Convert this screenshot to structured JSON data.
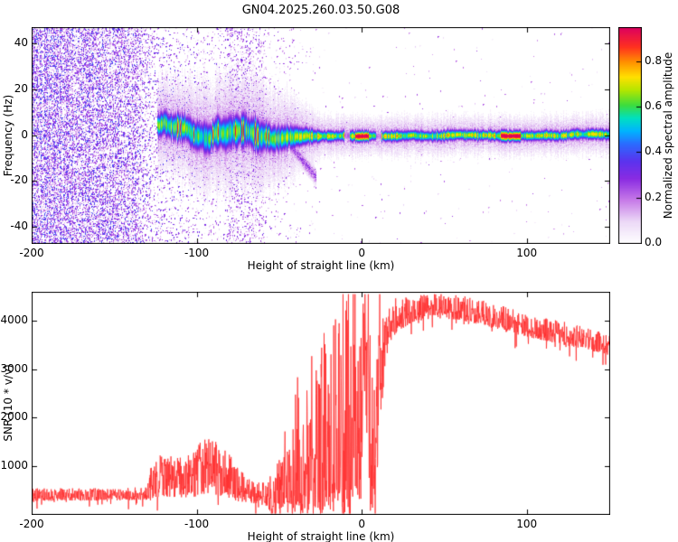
{
  "title": "GN04.2025.260.03.50.G08",
  "chart_data": [
    {
      "type": "heatmap",
      "panel": "doppler-spectrogram",
      "title": "GN04.2025.260.03.50.G08",
      "xlabel": "Height of straight line (km)",
      "ylabel": "Frequency (Hz)",
      "xlim": [
        -200,
        150
      ],
      "ylim": [
        -47,
        47
      ],
      "grid": false,
      "xticks": {
        "values": [
          -200,
          -100,
          0,
          100
        ],
        "labels": [
          "-200",
          "-100",
          "0",
          "100"
        ]
      },
      "yticks": {
        "values": [
          -40,
          -20,
          0,
          20,
          40
        ],
        "labels": [
          "-40",
          "-20",
          "0",
          "20",
          "40"
        ]
      },
      "colorbar": {
        "label": "Normalized spectral amplitude",
        "vmax": 0.95,
        "ticks": {
          "values": [
            0,
            0.2,
            0.4,
            0.6,
            0.8
          ],
          "labels": [
            "0.0",
            "0.2",
            "0.4",
            "0.6",
            "0.8"
          ]
        },
        "stops": [
          [
            0,
            "#ffffff"
          ],
          [
            0.1,
            "#ecd9f7"
          ],
          [
            0.2,
            "#c77ae8"
          ],
          [
            0.3,
            "#8a2be2"
          ],
          [
            0.38,
            "#5b33ee"
          ],
          [
            0.46,
            "#2b6bff"
          ],
          [
            0.52,
            "#00b4ff"
          ],
          [
            0.58,
            "#00e0c0"
          ],
          [
            0.64,
            "#3ddc3d"
          ],
          [
            0.71,
            "#b4e600"
          ],
          [
            0.77,
            "#ffe000"
          ],
          [
            0.84,
            "#ff9000"
          ],
          [
            0.91,
            "#ff3020"
          ],
          [
            1.0,
            "#dc0060"
          ]
        ]
      },
      "signal": {
        "noise_density": [
          [
            -200,
            0.5
          ],
          [
            -165,
            0.46
          ],
          [
            -140,
            0.38
          ],
          [
            -132,
            0.26
          ],
          [
            -127,
            0.14
          ],
          [
            -120,
            0.1
          ],
          [
            -108,
            0.07
          ],
          [
            -95,
            0.055
          ],
          [
            -83,
            0.05
          ],
          [
            -80,
            0.18
          ],
          [
            -72,
            0.2
          ],
          [
            -63,
            0.16
          ],
          [
            -58,
            0.05
          ],
          [
            -45,
            0.028
          ],
          [
            -32,
            0.014
          ],
          [
            -22,
            0.008
          ],
          [
            -12,
            0.005
          ],
          [
            150,
            0.004
          ]
        ],
        "noise_amp": [
          [
            -200,
            0.45
          ],
          [
            -130,
            0.42
          ],
          [
            -100,
            0.38
          ],
          [
            -60,
            0.35
          ],
          [
            -20,
            0.28
          ],
          [
            150,
            0.25
          ]
        ],
        "band": {
          "start": -124,
          "center": [
            [
              -124,
              2.0
            ],
            [
              -80,
              1.5
            ],
            [
              -40,
              0.6
            ],
            [
              150,
              0.3
            ]
          ],
          "wiggle_max": [
            [
              -124,
              4.0
            ],
            [
              -60,
              3.0
            ],
            [
              -35,
              1.0
            ],
            [
              150,
              0.5
            ]
          ],
          "wiggle_step": [
            [
              -124,
              1.6
            ],
            [
              -40,
              0.8
            ],
            [
              -30,
              0.25
            ],
            [
              150,
              0.2
            ]
          ],
          "sigma": [
            [
              -124,
              3.5
            ],
            [
              -95,
              4.5
            ],
            [
              -70,
              5.0
            ],
            [
              -45,
              3.5
            ],
            [
              -32,
              2.2
            ],
            [
              -25,
              1.6
            ],
            [
              150,
              1.6
            ]
          ],
          "intensity": [
            [
              -124,
              0.62
            ],
            [
              -90,
              0.58
            ],
            [
              -60,
              0.6
            ],
            [
              -30,
              0.66
            ],
            [
              0,
              0.68
            ],
            [
              150,
              0.66
            ]
          ],
          "fringe_intensity": 0.22,
          "fringe_width": 3.2,
          "red_segments": [
            [
              -4,
              4
            ],
            [
              84,
              96
            ]
          ],
          "fleck_range": [
            -120,
            -40
          ],
          "fleck_prob": 0.1,
          "dips": [
            -9,
            10
          ],
          "tail": {
            "range": [
              -46,
              -28
            ],
            "f_from": -2,
            "f_to": -18,
            "sigma": 2.2,
            "intensity": 0.32
          }
        }
      }
    },
    {
      "type": "line",
      "panel": "snr",
      "xlabel": "Height of straight line (km)",
      "ylabel": "SNR (10 * v/v)",
      "xlim": [
        -200,
        150
      ],
      "ylim": [
        0,
        4600
      ],
      "grid": false,
      "xticks": {
        "values": [
          -200,
          -100,
          0,
          100
        ],
        "labels": [
          "-200",
          "-100",
          "0",
          "100"
        ]
      },
      "yticks": {
        "values": [
          1000,
          2000,
          3000,
          4000
        ],
        "labels": [
          "1000",
          "2000",
          "3000",
          "4000"
        ]
      },
      "color": "#ff2d2d",
      "envelope": [
        [
          -200,
          400,
          130
        ],
        [
          -150,
          410,
          130
        ],
        [
          -132,
          420,
          140
        ],
        [
          -126,
          700,
          420
        ],
        [
          -118,
          850,
          500
        ],
        [
          -110,
          750,
          430
        ],
        [
          -102,
          850,
          500
        ],
        [
          -95,
          1000,
          580
        ],
        [
          -88,
          950,
          550
        ],
        [
          -82,
          850,
          500
        ],
        [
          -76,
          650,
          380
        ],
        [
          -70,
          500,
          280
        ],
        [
          -64,
          430,
          220
        ],
        [
          -58,
          420,
          250
        ],
        [
          -52,
          600,
          450
        ],
        [
          -47,
          900,
          750
        ],
        [
          -43,
          1300,
          1150
        ],
        [
          -39,
          1600,
          1450
        ],
        [
          -35,
          1300,
          1200
        ],
        [
          -31,
          1900,
          1750
        ],
        [
          -27,
          1500,
          1400
        ],
        [
          -24,
          2100,
          1950
        ],
        [
          -20,
          1700,
          1600
        ],
        [
          -17,
          2400,
          2250
        ],
        [
          -13,
          2100,
          2000
        ],
        [
          -10,
          2800,
          2600
        ],
        [
          -7,
          2400,
          2300
        ],
        [
          -4,
          3000,
          2800
        ],
        [
          -1,
          3300,
          2600
        ],
        [
          2,
          3600,
          1700
        ],
        [
          5,
          3000,
          2300
        ],
        [
          8,
          1400,
          1250
        ],
        [
          11,
          3200,
          1500
        ],
        [
          14,
          3800,
          800
        ],
        [
          18,
          4050,
          420
        ],
        [
          24,
          4150,
          320
        ],
        [
          32,
          4250,
          280
        ],
        [
          42,
          4320,
          260
        ],
        [
          52,
          4300,
          260
        ],
        [
          62,
          4250,
          260
        ],
        [
          75,
          4150,
          260
        ],
        [
          90,
          4000,
          260
        ],
        [
          105,
          3880,
          250
        ],
        [
          120,
          3760,
          240
        ],
        [
          135,
          3640,
          230
        ],
        [
          150,
          3520,
          230
        ]
      ]
    }
  ]
}
